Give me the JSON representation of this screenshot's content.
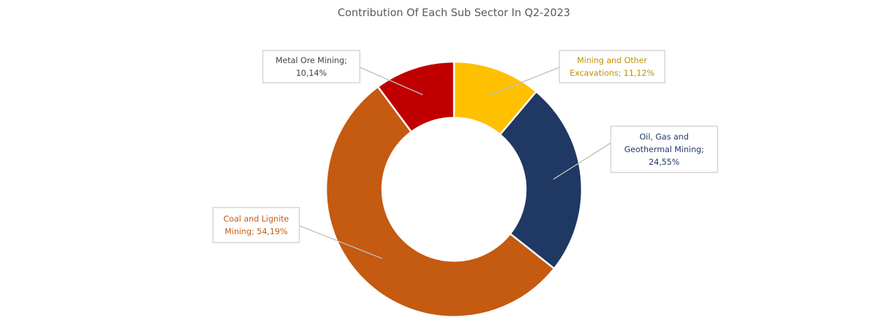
{
  "chart_data": {
    "type": "pie",
    "donut": true,
    "title": "Contribution Of Each Sub Sector In Q2-2023",
    "legend": "none",
    "slices": [
      {
        "name": "Mining and Other Excavations",
        "value": 11.12,
        "label": "Mining and Other Excavations; 11,12%",
        "lines": [
          "Mining and Other",
          "Excavations; 11,12%"
        ],
        "color": "#FFC000",
        "text_color": "#BF9000"
      },
      {
        "name": "Oil, Gas and Geothermal Mining",
        "value": 24.55,
        "label": "Oil, Gas and Geothermal Mining; 24,55%",
        "lines": [
          "Oil, Gas and",
          "Geothermal Mining;",
          "24,55%"
        ],
        "color": "#1F3864",
        "text_color": "#1F3864"
      },
      {
        "name": "Coal and Lignite Mining",
        "value": 54.19,
        "label": "Coal and Lignite Mining; 54,19%",
        "lines": [
          "Coal and Lignite",
          "Mining; 54,19%"
        ],
        "color": "#C55A11",
        "text_color": "#C55A11"
      },
      {
        "name": "Metal Ore Mining",
        "value": 10.14,
        "label": "Metal Ore Mining; 10,14%",
        "lines": [
          "Metal Ore Mining;",
          "10,14%"
        ],
        "color": "#C00000",
        "text_color": "#404040"
      }
    ]
  }
}
